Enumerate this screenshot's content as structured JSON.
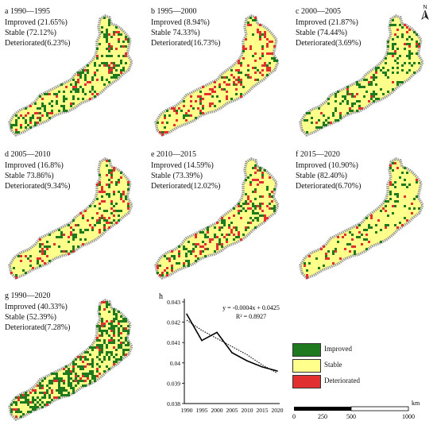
{
  "panels": [
    {
      "letter": "a",
      "period": "1990—1995",
      "lines": [
        "Improved (21.65%)",
        "Stable (72.12%)",
        "Deteriorated(6.23%)"
      ],
      "improved": 0.2165,
      "stable": 0.7212,
      "deteriorated": 0.0623
    },
    {
      "letter": "b",
      "period": "1995—2000",
      "lines": [
        "Improved (8.94%)",
        "Stable 74.33%)",
        "Deteriorated(16.73%)"
      ],
      "improved": 0.0894,
      "stable": 0.7433,
      "deteriorated": 0.1673
    },
    {
      "letter": "c",
      "period": "2000—2005",
      "lines": [
        "Improved (21.87%)",
        "Stable (74.44%)",
        "Deteriorated(3.69%)"
      ],
      "improved": 0.2187,
      "stable": 0.7444,
      "deteriorated": 0.0369
    },
    {
      "letter": "d",
      "period": "2005—2010",
      "lines": [
        "Improved (16.8%)",
        "Stable 73.86%)",
        "Deteriorated(9.34%)"
      ],
      "improved": 0.168,
      "stable": 0.7386,
      "deteriorated": 0.0934
    },
    {
      "letter": "e",
      "period": "2010—2015",
      "lines": [
        "Improved (14.59%)",
        "Stable (73.39%)",
        "Deteriorated(12.02%)"
      ],
      "improved": 0.1459,
      "stable": 0.7339,
      "deteriorated": 0.1202
    },
    {
      "letter": "f",
      "period": "2015—2020",
      "lines": [
        "Improved (10.90%)",
        "Stable (82.40%)",
        "Deteriorated(6.70%)"
      ],
      "improved": 0.109,
      "stable": 0.824,
      "deteriorated": 0.067
    },
    {
      "letter": "g",
      "period": "1990—2020",
      "lines": [
        "Improved (40.33%)",
        "Stable (52.39%)",
        "Deteriorated(7.28%)"
      ],
      "improved": 0.4033,
      "stable": 0.5239,
      "deteriorated": 0.0728
    }
  ],
  "colors": {
    "improved": "#1f7a1f",
    "stable": "#ffff8c",
    "deteriorated": "#e03030",
    "border": "#9a9a9a"
  },
  "north_label": "N",
  "chart_data": {
    "type": "line",
    "panel_label": "h",
    "x": [
      1990,
      1995,
      2000,
      2005,
      2010,
      2015,
      2020
    ],
    "series": [
      {
        "values": [
          0.0424,
          0.0411,
          0.0415,
          0.0405,
          0.0401,
          0.0398,
          0.0396
        ],
        "style": "solid"
      },
      {
        "values": [
          0.0421,
          0.0416,
          0.0412,
          0.0408,
          0.0404,
          0.0399,
          0.0395
        ],
        "style": "dotted"
      }
    ],
    "equation": "y = -0.0004x + 0.0425",
    "r2": "R² = 0.8927",
    "ylim": [
      0.038,
      0.043
    ],
    "yticks": [
      "0.043",
      "0.042",
      "0.041",
      "0.04",
      "0.039",
      "0.038"
    ],
    "xticks": [
      "1990",
      "1995",
      "2000",
      "2005",
      "2010",
      "2015",
      "2020"
    ]
  },
  "legend": [
    {
      "key": "improved",
      "label": "Improved"
    },
    {
      "key": "stable",
      "label": "Stable"
    },
    {
      "key": "deteriorated",
      "label": "Deteriorated"
    }
  ],
  "scalebar": {
    "ticks": [
      "0",
      "250",
      "500",
      "1000"
    ],
    "unit": "km"
  }
}
